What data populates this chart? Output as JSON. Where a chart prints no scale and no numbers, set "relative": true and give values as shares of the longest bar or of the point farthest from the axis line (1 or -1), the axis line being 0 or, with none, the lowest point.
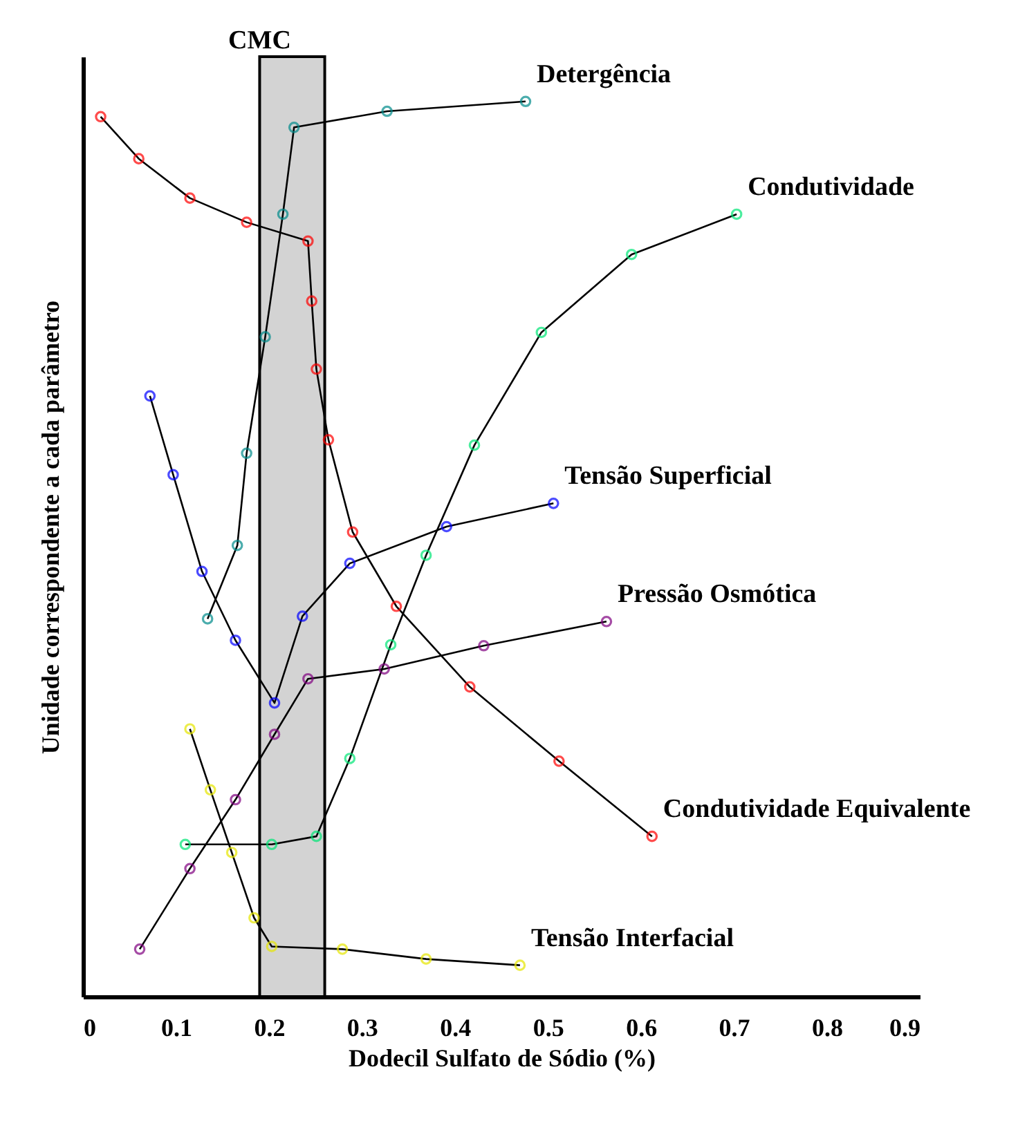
{
  "chart_data": {
    "type": "line",
    "relative": true,
    "xlabel": "Dodecil Sulfato de Sódio (%)",
    "ylabel": "Unidade correspondente a cada parâmetro",
    "xlim": [
      0,
      0.9
    ],
    "xticks": [
      0,
      0.1,
      0.2,
      0.3,
      0.4,
      0.5,
      0.6,
      0.7,
      0.8,
      0.9
    ],
    "marker": "circle",
    "line_style": "solid",
    "bands": [
      {
        "axis": "x",
        "from": 0.19,
        "to": 0.26,
        "label": "CMC",
        "color": "#d3d3d3"
      }
    ],
    "series": [
      {
        "name": "Detergência",
        "color": "#008b8b",
        "x": [
          0.134,
          0.166,
          0.176,
          0.196,
          0.215,
          0.227,
          0.327,
          0.476
        ],
        "values": [
          0.422,
          0.504,
          0.607,
          0.737,
          0.874,
          0.971,
          0.989,
          1.0
        ]
      },
      {
        "name": "Condutividade",
        "color": "#00e676",
        "x": [
          0.11,
          0.203,
          0.251,
          0.287,
          0.331,
          0.369,
          0.421,
          0.493,
          0.59,
          0.703
        ],
        "values": [
          0.17,
          0.17,
          0.179,
          0.266,
          0.393,
          0.493,
          0.616,
          0.742,
          0.829,
          0.874
        ]
      },
      {
        "name": "Tensão Superficial",
        "color": "#0000ff",
        "x": [
          0.072,
          0.097,
          0.128,
          0.164,
          0.206,
          0.236,
          0.287,
          0.391,
          0.506
        ],
        "values": [
          0.671,
          0.583,
          0.475,
          0.398,
          0.328,
          0.425,
          0.484,
          0.525,
          0.551
        ]
      },
      {
        "name": "Pressão Osmótica",
        "color": "#800080",
        "x": [
          0.061,
          0.115,
          0.164,
          0.206,
          0.242,
          0.324,
          0.431,
          0.563
        ],
        "values": [
          0.053,
          0.143,
          0.22,
          0.293,
          0.355,
          0.366,
          0.392,
          0.419
        ]
      },
      {
        "name": "Condutividade Equivalente",
        "color": "#ff0000",
        "x": [
          0.019,
          0.06,
          0.115,
          0.176,
          0.242,
          0.246,
          0.251,
          0.264,
          0.29,
          0.337,
          0.416,
          0.512,
          0.612
        ],
        "values": [
          0.983,
          0.936,
          0.892,
          0.865,
          0.844,
          0.777,
          0.701,
          0.622,
          0.519,
          0.436,
          0.346,
          0.263,
          0.179
        ]
      },
      {
        "name": "Tensão Interfacial",
        "color": "#e6e600",
        "x": [
          0.115,
          0.137,
          0.16,
          0.184,
          0.203,
          0.279,
          0.369,
          0.47
        ],
        "values": [
          0.299,
          0.231,
          0.161,
          0.088,
          0.056,
          0.053,
          0.042,
          0.035
        ]
      }
    ]
  }
}
